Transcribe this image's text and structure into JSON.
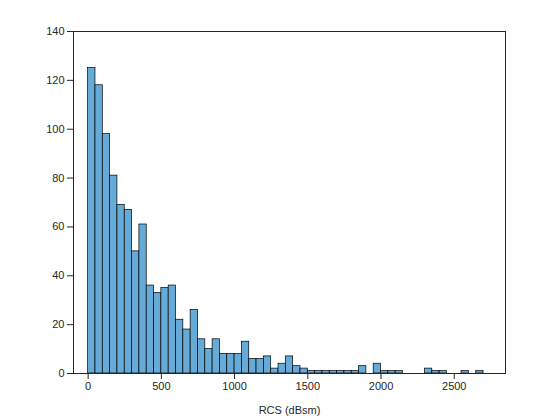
{
  "chart_data": {
    "type": "histogram",
    "x_label": "RCS (dBsm)",
    "bins": [
      0,
      50,
      100,
      150,
      200,
      250,
      300,
      350,
      400,
      450,
      500,
      550,
      600,
      650,
      700,
      750,
      800,
      850,
      900,
      950,
      1000,
      1050,
      1100,
      1150,
      1200,
      1250,
      1300,
      1350,
      1400,
      1450,
      1500,
      1550,
      1600,
      1650,
      1700,
      1750,
      1800,
      1850,
      1900,
      1950,
      2000,
      2050,
      2100,
      2150,
      2200,
      2250,
      2300,
      2350,
      2400,
      2450,
      2500,
      2550,
      2600,
      2650,
      2700
    ],
    "values": [
      125,
      118,
      98,
      81,
      69,
      67,
      50,
      61,
      36,
      33,
      35,
      36,
      22,
      18,
      26,
      14,
      10,
      14,
      8,
      8,
      8,
      13,
      6,
      6,
      7,
      2,
      4,
      7,
      3,
      2,
      1,
      1,
      1,
      1,
      1,
      1,
      1,
      3,
      0,
      4,
      1,
      1,
      1,
      0,
      0,
      0,
      2,
      1,
      1,
      0,
      0,
      1,
      0,
      1
    ],
    "color": "#66aad7",
    "xlim": [
      -100,
      2850
    ],
    "xticks": [
      0,
      500,
      1000,
      1500,
      2000,
      2500
    ],
    "ylim": [
      0,
      140
    ],
    "yticks": [
      0,
      20,
      40,
      60,
      80,
      100,
      120,
      140
    ],
    "grid": false
  }
}
